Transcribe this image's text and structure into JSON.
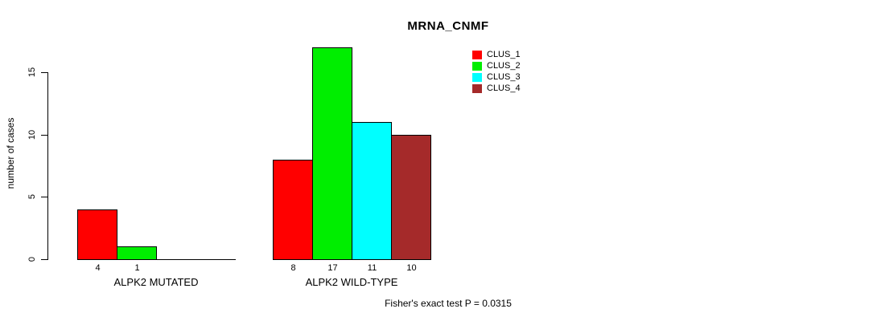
{
  "title": "MRNA_CNMF",
  "chart_data": {
    "type": "bar",
    "title": "MRNA_CNMF",
    "xlabel": "",
    "ylabel": "number of cases",
    "ylim": [
      0,
      15
    ],
    "yticks": [
      0,
      5,
      10,
      15
    ],
    "grid": false,
    "legend_position": "top-right",
    "categories": [
      "ALPK2 MUTATED",
      "ALPK2 WILD-TYPE"
    ],
    "series": [
      {
        "name": "CLUS_1",
        "color": "#ff0000",
        "values": [
          4,
          8
        ]
      },
      {
        "name": "CLUS_2",
        "color": "#00ee00",
        "values": [
          1,
          17
        ]
      },
      {
        "name": "CLUS_3",
        "color": "#00ffff",
        "values": [
          0,
          11
        ]
      },
      {
        "name": "CLUS_4",
        "color": "#a52a2a",
        "values": [
          0,
          10
        ]
      }
    ],
    "bar_value_labels": {
      "shown": true,
      "hide_zero": true
    },
    "annotation": "Fisher's exact test P = 0.0315"
  },
  "colors": {
    "axis": "#000000",
    "text": "#000000",
    "background": "#ffffff"
  },
  "layout_note": "bars with black outline, y tick labels rotated 90deg, value labels under each bar"
}
